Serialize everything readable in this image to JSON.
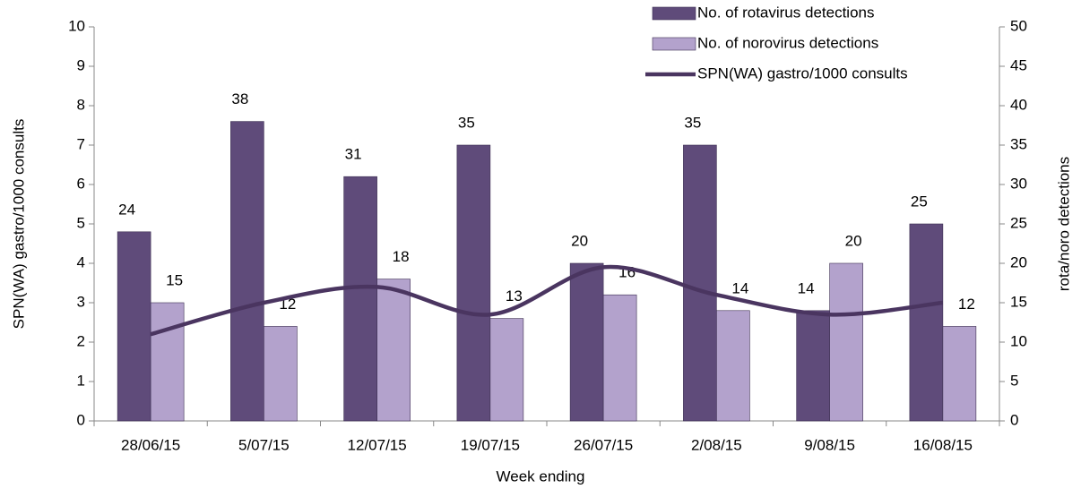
{
  "chart_data": {
    "type": "bar",
    "x_label": "Week ending",
    "y_label": "SPN(WA) gastro/1000 consults",
    "y2_label": "rota/noro detections",
    "categories": [
      "28/06/15",
      "5/07/15",
      "12/07/15",
      "19/07/15",
      "26/07/15",
      "2/08/15",
      "9/08/15",
      "16/08/15"
    ],
    "series": [
      {
        "name": "No. of rotavirus detections",
        "color": "#5f4b7a",
        "axis": "y2",
        "values": [
          24,
          38,
          31,
          35,
          20,
          35,
          14,
          25
        ]
      },
      {
        "name": "No. of norovirus detections",
        "color": "#b3a2cc",
        "axis": "y2",
        "values": [
          15,
          12,
          18,
          13,
          16,
          14,
          20,
          12
        ]
      },
      {
        "name": "SPN(WA) gastro/1000 consults",
        "color": "#4a3560",
        "type": "line",
        "values": [
          2.2,
          3.0,
          3.4,
          2.7,
          3.9,
          3.2,
          2.7,
          3.0
        ]
      }
    ],
    "ylim": [
      0,
      10
    ],
    "yticks": [
      0,
      1,
      2,
      3,
      4,
      5,
      6,
      7,
      8,
      9,
      10
    ],
    "y2lim": [
      0,
      50
    ],
    "y2ticks": [
      0,
      5,
      10,
      15,
      20,
      25,
      30,
      35,
      40,
      45,
      50
    ],
    "legend": "top-right"
  }
}
